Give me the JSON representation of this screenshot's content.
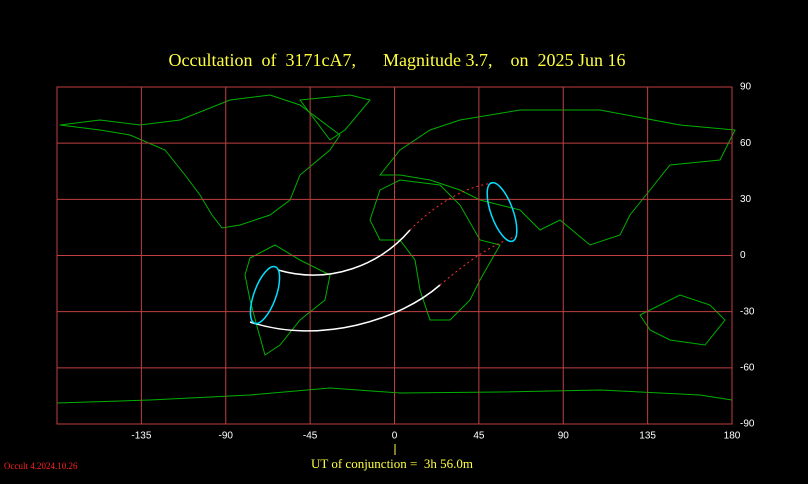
{
  "chart_data": {
    "type": "map",
    "title": "Occultation  of  3171cA7,      Magnitude 3.7,    on  2025 Jun 16",
    "xlim": [
      -180,
      180
    ],
    "ylim": [
      -90,
      90
    ],
    "xticks": [
      -135,
      -90,
      -45,
      0,
      45,
      90,
      135,
      180
    ],
    "yticks": [
      90,
      60,
      30,
      0,
      -30,
      -60,
      -90
    ],
    "grid": true,
    "grid_color": "#c04040",
    "land_color": "#00b000",
    "annotation": "UT of conjunction =  3h 56.0m",
    "footer": "Occult 4.2024.10.26"
  }
}
